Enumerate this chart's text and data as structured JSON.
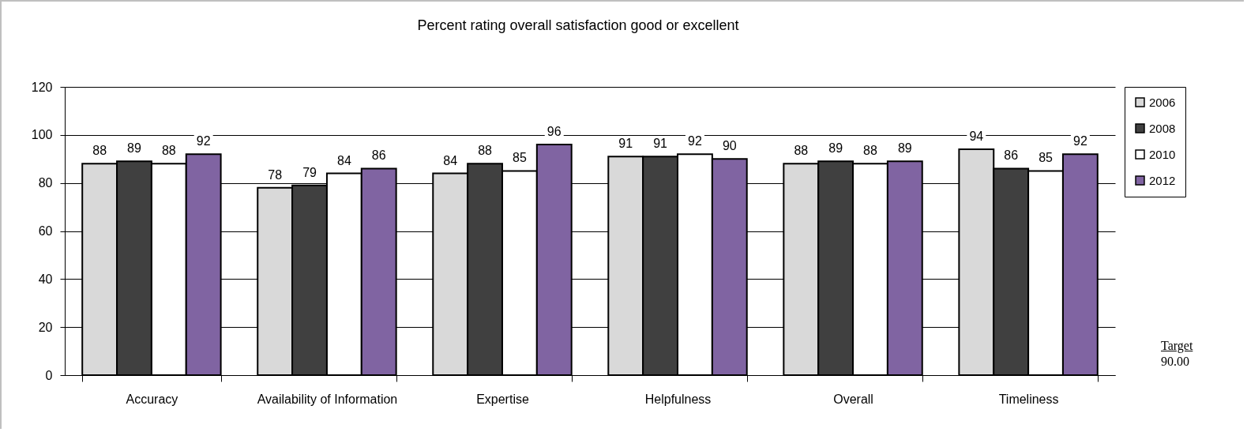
{
  "chart_data": {
    "type": "bar",
    "title": "Percent rating overall satisfaction good or excellent",
    "categories": [
      "Accuracy",
      "Availability of Information",
      "Expertise",
      "Helpfulness",
      "Overall",
      "Timeliness"
    ],
    "series": [
      {
        "name": "2006",
        "color": "#d9d9d9",
        "values": [
          88,
          78,
          84,
          91,
          88,
          94
        ]
      },
      {
        "name": "2008",
        "color": "#404040",
        "values": [
          89,
          79,
          88,
          91,
          89,
          86
        ]
      },
      {
        "name": "2010",
        "color": "#ffffff",
        "values": [
          88,
          84,
          85,
          92,
          88,
          85
        ]
      },
      {
        "name": "2012",
        "color": "#8064a2",
        "values": [
          92,
          86,
          96,
          90,
          89,
          92
        ]
      }
    ],
    "ylim": [
      0,
      120
    ],
    "yticks": [
      0,
      20,
      40,
      60,
      80,
      100,
      120
    ],
    "grid": "y",
    "legend": "right",
    "data_labels": true,
    "annotations": [
      "Target",
      "90.00"
    ]
  }
}
